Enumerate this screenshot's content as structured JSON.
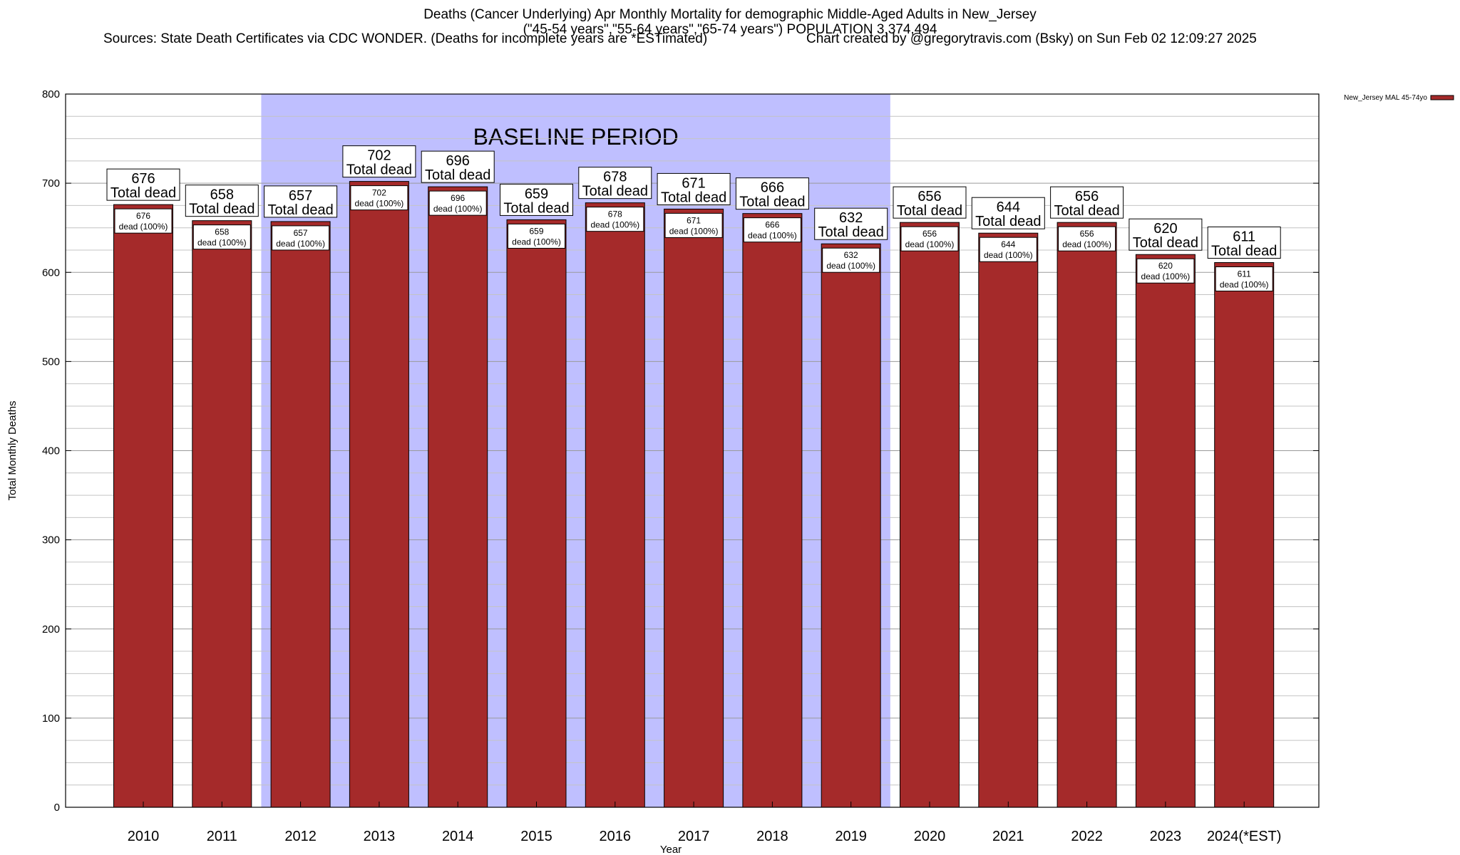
{
  "title": {
    "line1": "Deaths (Cancer Underlying) Apr Monthly Mortality for demographic Middle-Aged Adults in New_Jersey",
    "line2": "(\"45-54 years\",\"55-64 years\",\"65-74 years\") POPULATION 3,374,494",
    "sources": "Sources: State Death Certificates via CDC WONDER. (Deaths for incomplete years are *ESTimated)",
    "credit": "Chart created by @gregorytravis.com (Bsky) on Sun Feb 02 12:09:27 2025"
  },
  "chart_data": {
    "type": "bar",
    "categories": [
      "2010",
      "2011",
      "2012",
      "2013",
      "2014",
      "2015",
      "2016",
      "2017",
      "2018",
      "2019",
      "2020",
      "2021",
      "2022",
      "2023",
      "2024(*EST)"
    ],
    "series": [
      {
        "name": "New_Jersey MAL 45-74yo",
        "color": "#a52a2a",
        "values": [
          676,
          658,
          657,
          702,
          696,
          659,
          678,
          671,
          666,
          632,
          656,
          644,
          656,
          620,
          611
        ]
      }
    ],
    "total_label": "Total dead",
    "inner_label": "dead (100%)",
    "xlabel": "Year",
    "ylabel": "Total Monthly Deaths",
    "ylim": [
      0,
      800
    ],
    "yticks": [
      0,
      100,
      200,
      300,
      400,
      500,
      600,
      700,
      800
    ],
    "grid": true,
    "legend_position": "top-right",
    "baseline": {
      "label": "BASELINE PERIOD",
      "from": "2012",
      "to": "2019",
      "color": "#bfbfff"
    }
  }
}
